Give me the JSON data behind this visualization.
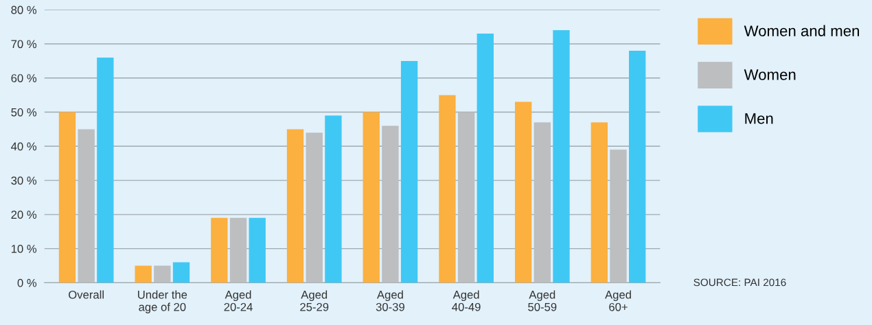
{
  "chart_data": {
    "type": "bar",
    "categories": [
      "Overall",
      "Under the\nage of 20",
      "Aged\n20-24",
      "Aged\n25-29",
      "Aged\n30-39",
      "Aged\n40-49",
      "Aged\n50-59",
      "Aged\n60+"
    ],
    "series": [
      {
        "name": "Women and men",
        "color": "#fbb040",
        "values": [
          50,
          5,
          19,
          45,
          50,
          55,
          53,
          47
        ]
      },
      {
        "name": "Women",
        "color": "#bcbec0",
        "values": [
          45,
          5,
          19,
          44,
          46,
          50,
          47,
          39
        ]
      },
      {
        "name": "Men",
        "color": "#40c8f4",
        "values": [
          66,
          6,
          19,
          49,
          65,
          73,
          74,
          68
        ]
      }
    ],
    "ylim": [
      0,
      80
    ],
    "yticks": [
      {
        "value": 0,
        "label": "0 %"
      },
      {
        "value": 10,
        "label": "10 %"
      },
      {
        "value": 20,
        "label": "20 %"
      },
      {
        "value": 30,
        "label": "30 %"
      },
      {
        "value": 40,
        "label": "40 %"
      },
      {
        "value": 50,
        "label": "50 %"
      },
      {
        "value": 60,
        "label": "60 %"
      },
      {
        "value": 70,
        "label": "70 %"
      },
      {
        "value": 80,
        "label": "80 %"
      }
    ],
    "grid": "y",
    "legend": "top right",
    "annotations": [
      "SOURCE: PAI 2016"
    ]
  }
}
